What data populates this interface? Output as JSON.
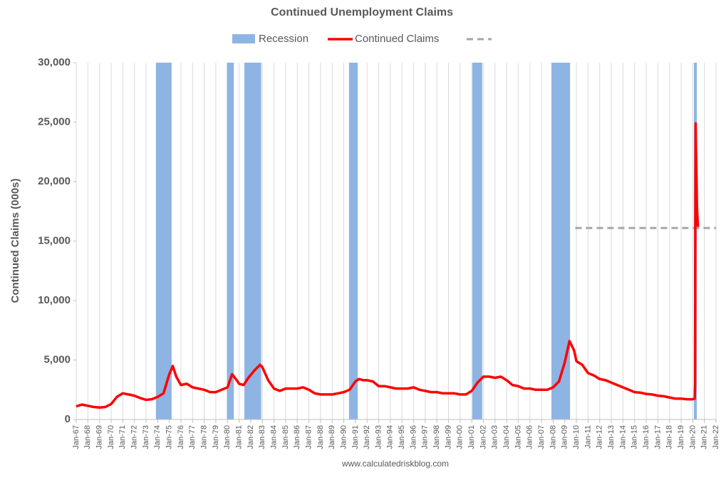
{
  "chart_data": {
    "type": "line",
    "title": "Continued Unemployment Claims",
    "y_label": "Continued Claims (000s)",
    "source": "www.calculatedriskblog.com",
    "xlim": [
      1967,
      2022
    ],
    "xticks": [
      {
        "value": 1967,
        "label": "Jan-67"
      },
      {
        "value": 1968,
        "label": "Jan-68"
      },
      {
        "value": 1969,
        "label": "Jan-69"
      },
      {
        "value": 1970,
        "label": "Jan-70"
      },
      {
        "value": 1971,
        "label": "Jan-71"
      },
      {
        "value": 1972,
        "label": "Jan-72"
      },
      {
        "value": 1973,
        "label": "Jan-73"
      },
      {
        "value": 1974,
        "label": "Jan-74"
      },
      {
        "value": 1975,
        "label": "Jan-75"
      },
      {
        "value": 1976,
        "label": "Jan-76"
      },
      {
        "value": 1977,
        "label": "Jan-77"
      },
      {
        "value": 1978,
        "label": "Jan-78"
      },
      {
        "value": 1979,
        "label": "Jan-79"
      },
      {
        "value": 1980,
        "label": "Jan-80"
      },
      {
        "value": 1981,
        "label": "Jan-81"
      },
      {
        "value": 1982,
        "label": "Jan-82"
      },
      {
        "value": 1983,
        "label": "Jan-83"
      },
      {
        "value": 1984,
        "label": "Jan-84"
      },
      {
        "value": 1985,
        "label": "Jan-85"
      },
      {
        "value": 1986,
        "label": "Jan-86"
      },
      {
        "value": 1987,
        "label": "Jan-87"
      },
      {
        "value": 1988,
        "label": "Jan-88"
      },
      {
        "value": 1989,
        "label": "Jan-89"
      },
      {
        "value": 1990,
        "label": "Jan-90"
      },
      {
        "value": 1991,
        "label": "Jan-91"
      },
      {
        "value": 1992,
        "label": "Jan-92"
      },
      {
        "value": 1993,
        "label": "Jan-93"
      },
      {
        "value": 1994,
        "label": "Jan-94"
      },
      {
        "value": 1995,
        "label": "Jan-95"
      },
      {
        "value": 1996,
        "label": "Jan-96"
      },
      {
        "value": 1997,
        "label": "Jan-97"
      },
      {
        "value": 1998,
        "label": "Jan-98"
      },
      {
        "value": 1999,
        "label": "Jan-99"
      },
      {
        "value": 2000,
        "label": "Jan-00"
      },
      {
        "value": 2001,
        "label": "Jan-01"
      },
      {
        "value": 2002,
        "label": "Jan-02"
      },
      {
        "value": 2003,
        "label": "Jan-03"
      },
      {
        "value": 2004,
        "label": "Jan-04"
      },
      {
        "value": 2005,
        "label": "Jan-05"
      },
      {
        "value": 2006,
        "label": "Jan-06"
      },
      {
        "value": 2007,
        "label": "Jan-07"
      },
      {
        "value": 2008,
        "label": "Jan-08"
      },
      {
        "value": 2009,
        "label": "Jan-09"
      },
      {
        "value": 2010,
        "label": "Jan-10"
      },
      {
        "value": 2011,
        "label": "Jan-11"
      },
      {
        "value": 2012,
        "label": "Jan-12"
      },
      {
        "value": 2013,
        "label": "Jan-13"
      },
      {
        "value": 2014,
        "label": "Jan-14"
      },
      {
        "value": 2015,
        "label": "Jan-15"
      },
      {
        "value": 2016,
        "label": "Jan-16"
      },
      {
        "value": 2017,
        "label": "Jan-17"
      },
      {
        "value": 2018,
        "label": "Jan-18"
      },
      {
        "value": 2019,
        "label": "Jan-19"
      },
      {
        "value": 2020,
        "label": "Jan-20"
      },
      {
        "value": 2021,
        "label": "Jan-21"
      },
      {
        "value": 2022,
        "label": "Jan-22"
      }
    ],
    "ylim": [
      0,
      30000
    ],
    "yticks": [
      0,
      {
        "value": 5000,
        "label": "5,000"
      },
      {
        "value": 10000,
        "label": "10,000"
      },
      {
        "value": 15000,
        "label": "15,000"
      },
      {
        "value": 20000,
        "label": "20,000"
      },
      {
        "value": 25000,
        "label": "25,000"
      },
      {
        "value": 30000,
        "label": "30,000"
      }
    ],
    "grid": true,
    "recession": {
      "name": "Recession",
      "color": "#8eb4e3",
      "periods": [
        [
          1973.85,
          1975.2
        ],
        [
          1979.95,
          1980.55
        ],
        [
          1981.45,
          1982.9
        ],
        [
          1990.45,
          1991.2
        ],
        [
          2001.05,
          2001.9
        ],
        [
          2007.85,
          2009.45
        ],
        [
          2020.1,
          2020.35
        ]
      ]
    },
    "x": [
      1967,
      1967.5,
      1968,
      1968.5,
      1969,
      1969.5,
      1970,
      1970.5,
      1971,
      1971.5,
      1972,
      1972.5,
      1973,
      1973.5,
      1974,
      1974.5,
      1975,
      1975.3,
      1975.6,
      1976,
      1976.5,
      1977,
      1977.5,
      1978,
      1978.5,
      1979,
      1979.5,
      1980,
      1980.4,
      1980.8,
      1981,
      1981.4,
      1981.8,
      1982.3,
      1982.8,
      1983,
      1983.5,
      1984,
      1984.5,
      1985,
      1985.5,
      1986,
      1986.5,
      1987,
      1987.5,
      1988,
      1988.5,
      1989,
      1989.5,
      1990,
      1990.5,
      1991,
      1991.3,
      1991.7,
      1992,
      1992.5,
      1993,
      1993.5,
      1994,
      1994.5,
      1995,
      1995.5,
      1996,
      1996.5,
      1997,
      1997.5,
      1998,
      1998.5,
      1999,
      1999.5,
      2000,
      2000.5,
      2001,
      2001.5,
      2002,
      2002.5,
      2003,
      2003.5,
      2004,
      2004.5,
      2005,
      2005.5,
      2006,
      2006.5,
      2007,
      2007.5,
      2008,
      2008.5,
      2009,
      2009.4,
      2009.8,
      2010,
      2010.5,
      2011,
      2011.5,
      2012,
      2012.5,
      2013,
      2013.5,
      2014,
      2014.5,
      2015,
      2015.5,
      2016,
      2016.5,
      2017,
      2017.5,
      2018,
      2018.5,
      2019,
      2019.5,
      2020,
      2020.17,
      2020.2,
      2020.22,
      2020.25,
      2020.28,
      2020.32,
      2020.36,
      2020.4,
      2020.45
    ],
    "series": [
      {
        "name": "Continued Claims",
        "color": "#ff0000",
        "values": [
          1100,
          1250,
          1150,
          1050,
          1000,
          1050,
          1300,
          1900,
          2200,
          2100,
          2000,
          1800,
          1650,
          1700,
          1900,
          2200,
          3800,
          4500,
          3600,
          2900,
          3000,
          2700,
          2600,
          2500,
          2300,
          2300,
          2500,
          2700,
          3800,
          3300,
          3000,
          2900,
          3500,
          4100,
          4600,
          4400,
          3300,
          2600,
          2400,
          2600,
          2600,
          2600,
          2700,
          2500,
          2200,
          2100,
          2100,
          2100,
          2200,
          2300,
          2500,
          3200,
          3400,
          3300,
          3300,
          3200,
          2800,
          2800,
          2700,
          2600,
          2600,
          2600,
          2700,
          2500,
          2400,
          2300,
          2300,
          2200,
          2200,
          2200,
          2100,
          2100,
          2400,
          3100,
          3600,
          3600,
          3500,
          3600,
          3300,
          2900,
          2800,
          2600,
          2600,
          2500,
          2500,
          2500,
          2700,
          3200,
          4800,
          6600,
          5800,
          4900,
          4600,
          3900,
          3700,
          3400,
          3300,
          3100,
          2900,
          2700,
          2500,
          2300,
          2250,
          2150,
          2100,
          2000,
          1950,
          1850,
          1750,
          1750,
          1700,
          1700,
          1750,
          3000,
          15000,
          24900,
          22500,
          20500,
          18000,
          17000,
          16200
        ]
      }
    ],
    "reference_line": {
      "value": 16100,
      "color": "#a6a6a6",
      "x_range": [
        2009.9,
        2022
      ]
    }
  }
}
